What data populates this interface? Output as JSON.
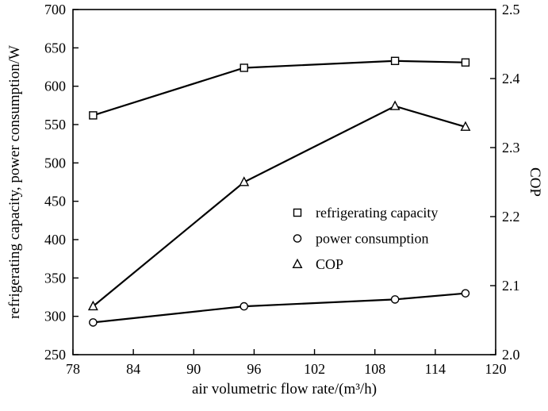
{
  "chart_data": {
    "type": "line",
    "title": "",
    "xlabel": "air volumetric flow rate/(m³/h)",
    "ylabel_left": "refrigerating capacity, power consumption/W",
    "ylabel_right": "COP",
    "xlim": [
      78,
      120
    ],
    "xticks": [
      "78",
      "84",
      "90",
      "96",
      "102",
      "108",
      "114",
      "120"
    ],
    "ylim_left": [
      250,
      700
    ],
    "yticks_left": [
      "250",
      "300",
      "350",
      "400",
      "450",
      "500",
      "550",
      "600",
      "650",
      "700"
    ],
    "ylim_right": [
      2.0,
      2.5
    ],
    "yticks_right": [
      "2.0",
      "2.1",
      "2.2",
      "2.3",
      "2.4",
      "2.5"
    ],
    "grid": false,
    "x": [
      80,
      95,
      110,
      117
    ],
    "series": [
      {
        "name": "refrigerating capacity",
        "axis": "left",
        "marker": "square",
        "values": [
          562,
          624,
          633,
          631
        ]
      },
      {
        "name": "power consumption",
        "axis": "left",
        "marker": "circle",
        "values": [
          292,
          313,
          322,
          330
        ]
      },
      {
        "name": "COP",
        "axis": "right",
        "marker": "triangle",
        "values": [
          2.07,
          2.25,
          2.36,
          2.33
        ]
      }
    ],
    "legend": {
      "position": "center-right",
      "entries": [
        "refrigerating capacity",
        "power consumption",
        "COP"
      ]
    },
    "colors": {
      "line": "#000000",
      "marker_fill": "#ffffff",
      "background": "#ffffff"
    }
  }
}
